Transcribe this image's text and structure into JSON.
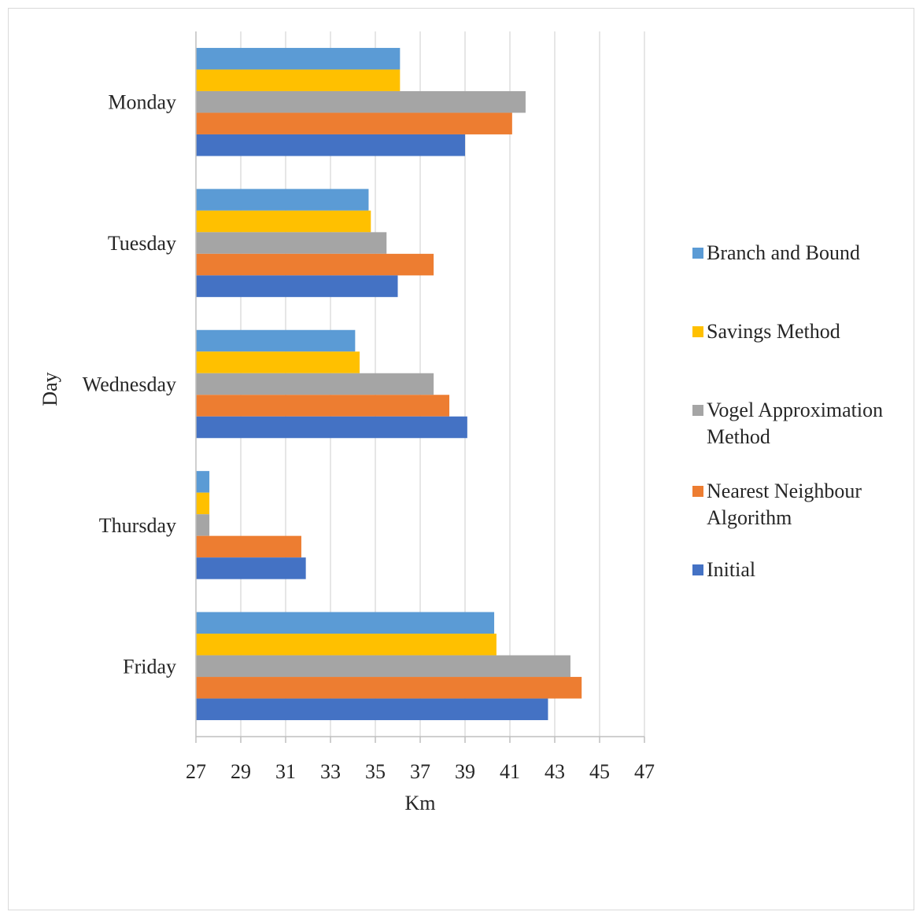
{
  "chart_data": {
    "type": "bar",
    "orientation": "horizontal",
    "title": "",
    "xlabel": "Km",
    "ylabel": "Day",
    "xlim": [
      27,
      47
    ],
    "x_ticks": [
      "27",
      "29",
      "31",
      "33",
      "35",
      "37",
      "39",
      "41",
      "43",
      "45",
      "47"
    ],
    "grid": true,
    "legend_position": "right",
    "categories": [
      "Monday",
      "Tuesday",
      "Wednesday",
      "Thursday",
      "Friday"
    ],
    "series": [
      {
        "name": "Branch and Bound",
        "color": "#5b9bd5",
        "values": [
          36.1,
          34.7,
          34.1,
          27.6,
          40.3
        ]
      },
      {
        "name": "Savings Method",
        "color": "#ffc000",
        "values": [
          36.1,
          34.8,
          34.3,
          27.6,
          40.4
        ]
      },
      {
        "name": "Vogel Approximation Method",
        "color": "#a5a5a5",
        "values": [
          41.7,
          35.5,
          37.6,
          27.6,
          43.7
        ]
      },
      {
        "name": "Nearest Neighbour Algorithm",
        "color": "#ed7d31",
        "values": [
          41.1,
          37.6,
          38.3,
          31.7,
          44.2
        ]
      },
      {
        "name": "Initial",
        "color": "#4472c4",
        "values": [
          39.0,
          36.0,
          39.1,
          31.9,
          42.7
        ]
      }
    ]
  }
}
